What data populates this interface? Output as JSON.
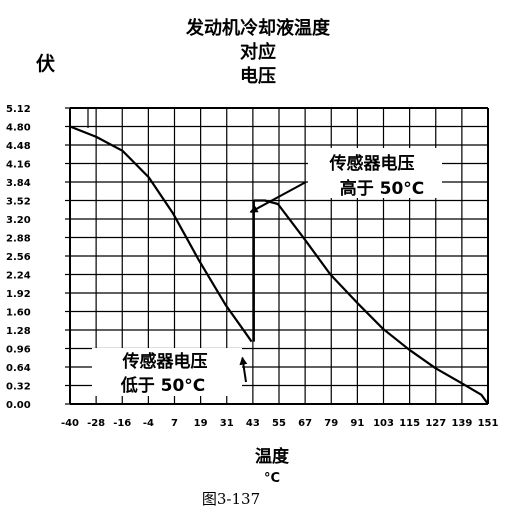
{
  "chart_data": {
    "type": "line",
    "title_lines": [
      "发动机冷却液温度",
      "对应",
      "电压"
    ],
    "ylabel": "伏",
    "xlabel": "温度",
    "xunit": "°C",
    "caption": "图3-137",
    "x_ticks": [
      "-40",
      "-28",
      "-16",
      "-4",
      "7",
      "19",
      "31",
      "43",
      "55",
      "67",
      "79",
      "91",
      "103",
      "115",
      "127",
      "139",
      "151"
    ],
    "y_ticks": [
      "5.12",
      "4.80",
      "4.48",
      "4.16",
      "3.84",
      "3.52",
      "3.20",
      "2.88",
      "2.56",
      "2.24",
      "1.92",
      "1.60",
      "1.28",
      "0.96",
      "0.64",
      "0.32",
      "0.00"
    ],
    "xlim": [
      -40,
      151
    ],
    "ylim": [
      0,
      5.12
    ],
    "grid": true,
    "series": [
      {
        "x": [
          -40,
          -28,
          -16,
          -4,
          7,
          19,
          31,
          40,
          43
        ],
        "y": [
          4.8,
          4.62,
          4.38,
          3.92,
          3.3,
          2.48,
          1.72,
          1.24,
          1.08
        ]
      },
      {
        "x": [
          44,
          49,
          55,
          67,
          79,
          91,
          103,
          115,
          127,
          139,
          148,
          151
        ],
        "y": [
          3.52,
          3.52,
          3.46,
          2.86,
          2.24,
          1.76,
          1.3,
          0.94,
          0.62,
          0.36,
          0.16,
          0.0
        ]
      }
    ],
    "annotations": [
      {
        "lines": [
          "传感器电压",
          "高于 50°C"
        ],
        "arrow_to": {
          "x": 42.5,
          "y": 3.32
        }
      },
      {
        "lines": [
          "传感器电压",
          "低于 50°C"
        ],
        "arrow_to": {
          "x": 41.5,
          "y": 0.94
        }
      }
    ]
  }
}
